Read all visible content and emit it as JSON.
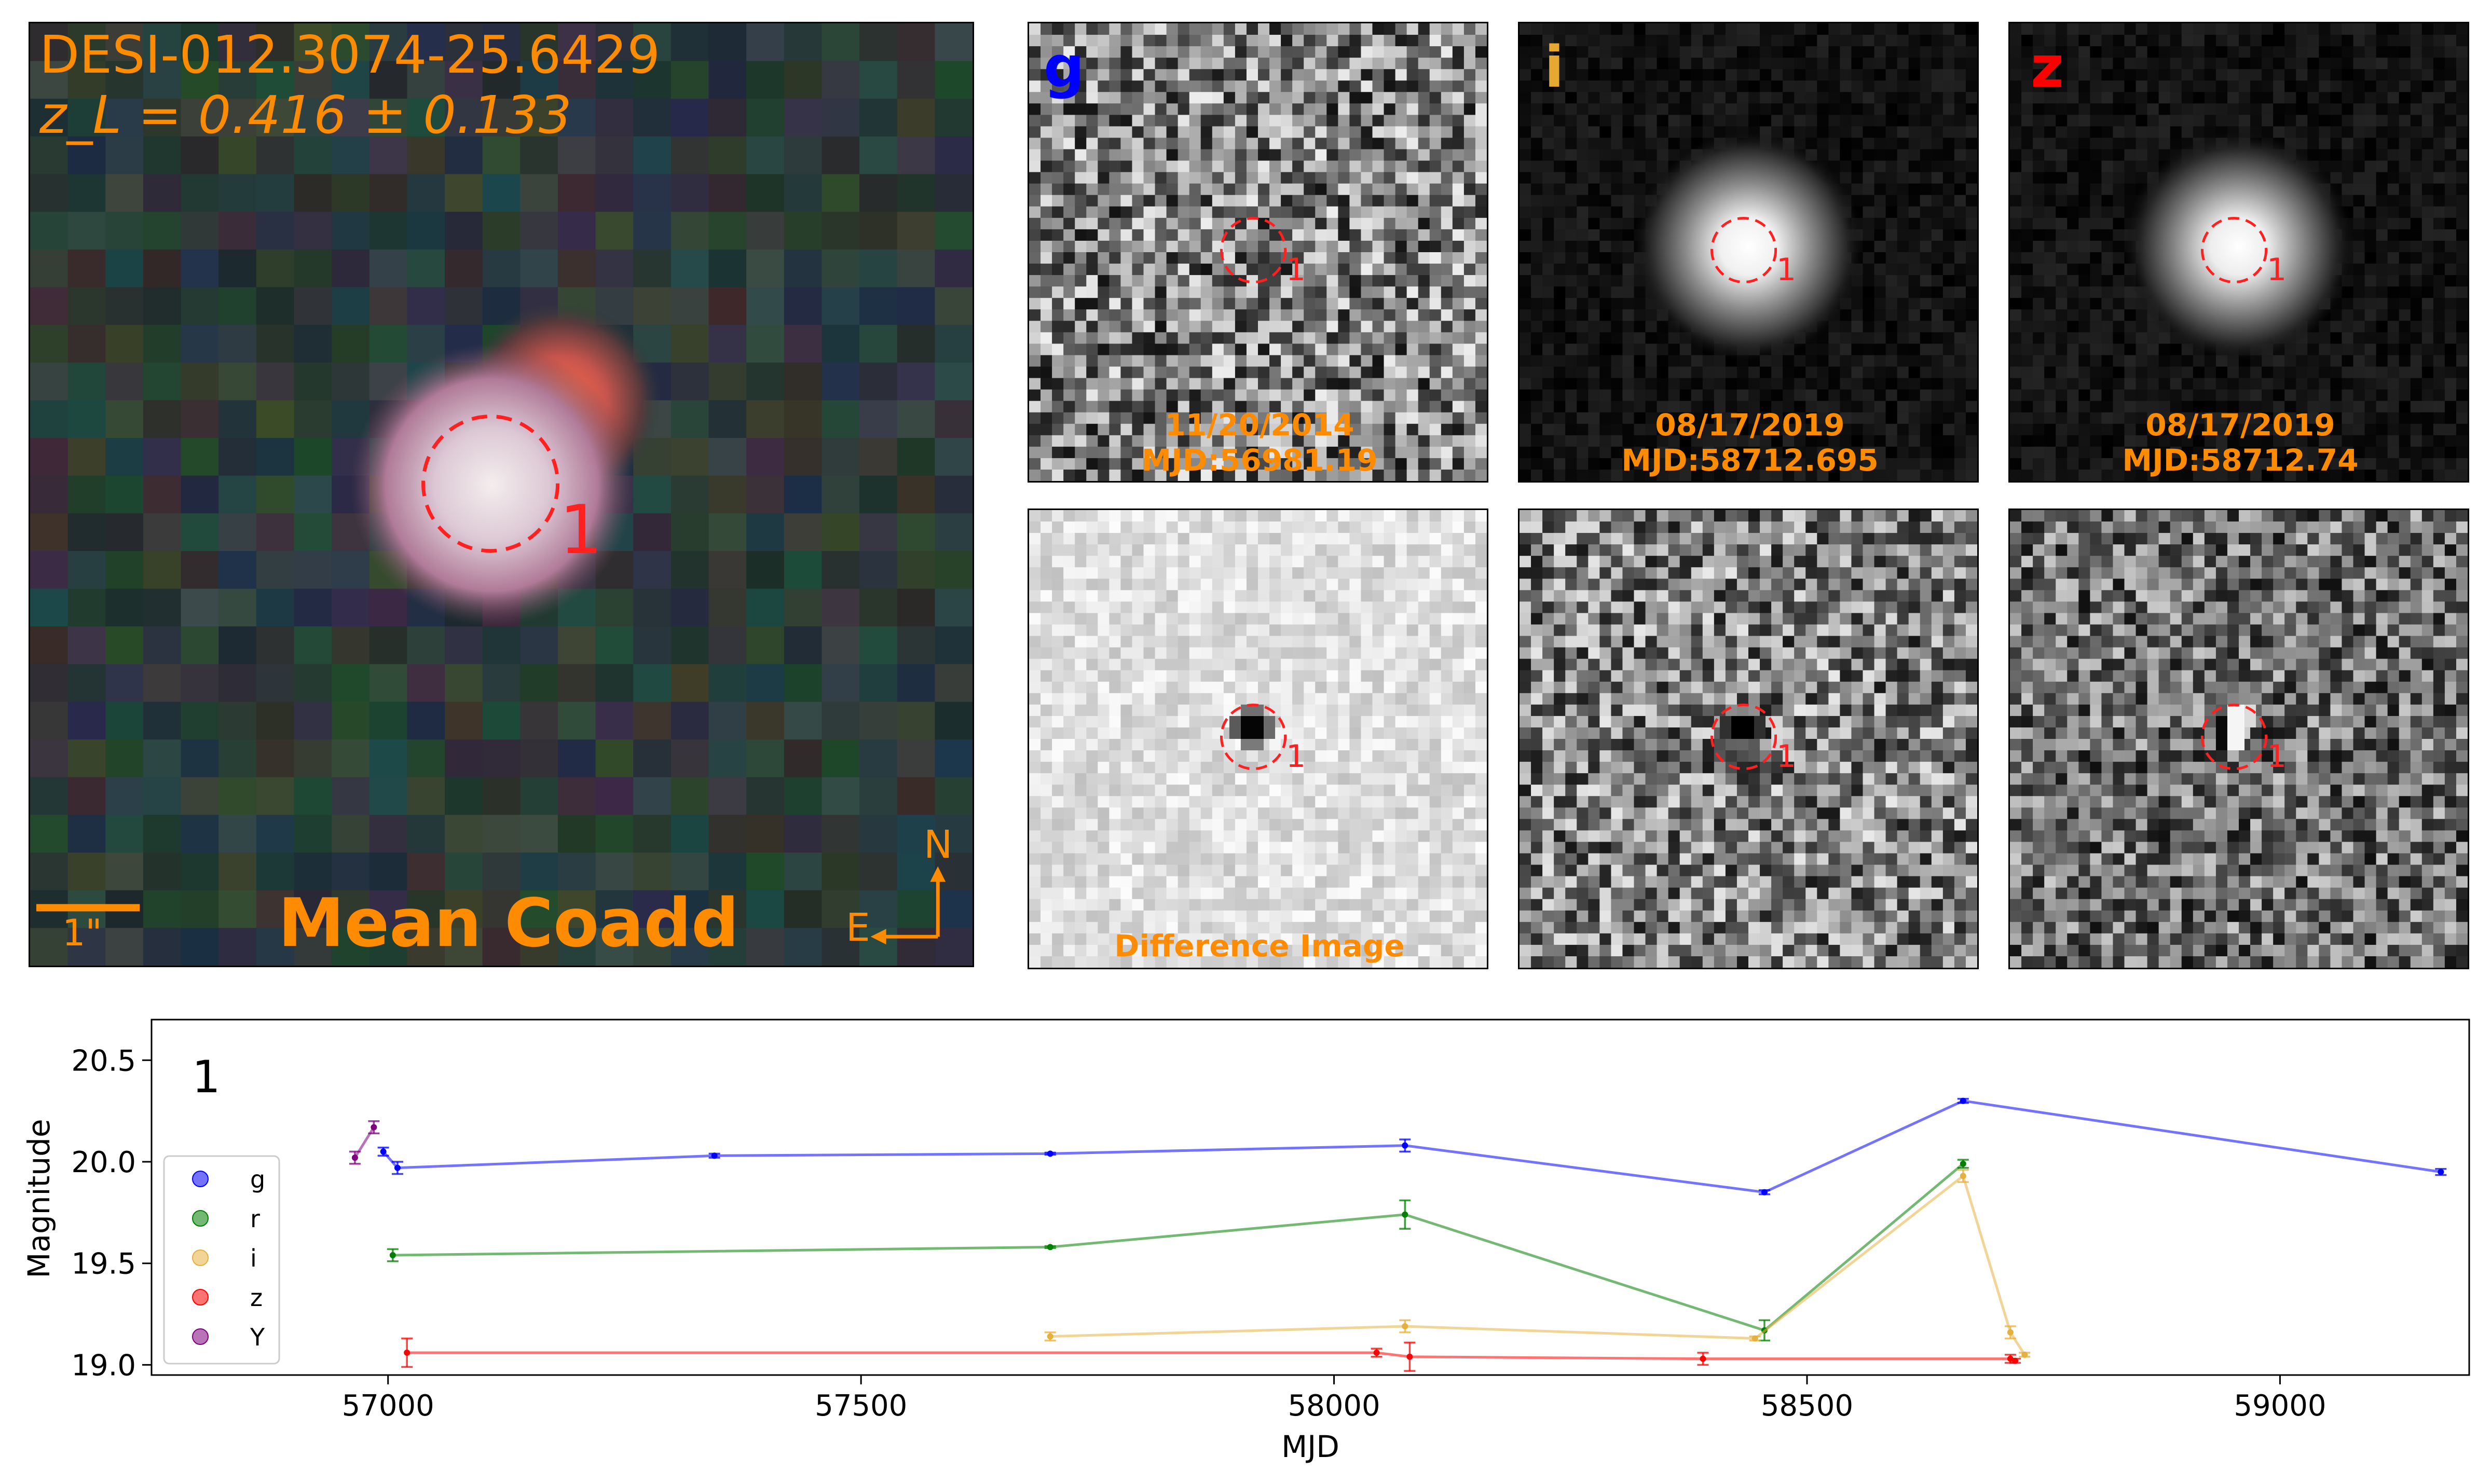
{
  "coadd": {
    "name": "DESI-012.3074-25.6429",
    "redshift": "z_L = 0.416 ± 0.133",
    "caption": "Mean Coadd",
    "scale_label": "1\"",
    "compass_n": "N",
    "compass_e": "E",
    "source_label": "1"
  },
  "cutouts": [
    {
      "band": "g",
      "band_color": "#0000ff",
      "date": "11/20/2014",
      "mjd": "MJD:56981.19",
      "source_label": "1"
    },
    {
      "band": "i",
      "band_color": "#e5a830",
      "date": "08/17/2019",
      "mjd": "MJD:58712.695",
      "source_label": "1"
    },
    {
      "band": "z",
      "band_color": "#ff0000",
      "date": "08/17/2019",
      "mjd": "MJD:58712.74",
      "source_label": "1"
    }
  ],
  "difference": {
    "caption": "Difference Image",
    "source_labels": [
      "1",
      "1",
      "1"
    ]
  },
  "chart_data": {
    "type": "line",
    "panel_label": "1",
    "xlabel": "MJD",
    "ylabel": "Magnitude",
    "xlim": [
      56750,
      59200
    ],
    "ylim": [
      20.7,
      18.95
    ],
    "xticks": [
      57000,
      57500,
      58000,
      58500,
      59000
    ],
    "yticks": [
      19.0,
      19.5,
      20.0,
      20.5
    ],
    "xtick_labels": [
      "57000",
      "57500",
      "58000",
      "58500",
      "59000"
    ],
    "ytick_labels": [
      "19.0",
      "19.5",
      "20.0",
      "20.5"
    ],
    "legend_position": "lower-left",
    "grid": false,
    "series": [
      {
        "name": "g",
        "color": "#0000ff",
        "x": [
          56995,
          57010,
          57345,
          57700,
          58075,
          58455,
          58665,
          59170
        ],
        "y": [
          20.05,
          19.97,
          20.03,
          20.04,
          20.08,
          19.85,
          20.3,
          19.95
        ],
        "err": [
          0.02,
          0.03,
          0.01,
          0.005,
          0.03,
          0.01,
          0.01,
          0.015
        ]
      },
      {
        "name": "r",
        "color": "#008000",
        "x": [
          57005,
          57700,
          58075,
          58455,
          58665
        ],
        "y": [
          19.54,
          19.58,
          19.74,
          19.17,
          19.99
        ],
        "err": [
          0.03,
          0.005,
          0.07,
          0.05,
          0.02
        ]
      },
      {
        "name": "i",
        "color": "#e5b040",
        "x": [
          57700,
          58075,
          58445,
          58665,
          58715,
          58730
        ],
        "y": [
          19.14,
          19.19,
          19.13,
          19.93,
          19.16,
          19.05
        ],
        "err": [
          0.02,
          0.03,
          0.01,
          0.03,
          0.03,
          0.01
        ]
      },
      {
        "name": "z",
        "color": "#ff0000",
        "x": [
          57020,
          58045,
          58080,
          58390,
          58715,
          58720
        ],
        "y": [
          19.06,
          19.06,
          19.04,
          19.03,
          19.03,
          19.02
        ],
        "err": [
          0.07,
          0.02,
          0.07,
          0.03,
          0.02,
          0.01
        ]
      },
      {
        "name": "Y",
        "color": "#800080",
        "x": [
          56965,
          56985
        ],
        "y": [
          20.02,
          20.17
        ],
        "err": [
          0.03,
          0.03
        ]
      }
    ]
  }
}
